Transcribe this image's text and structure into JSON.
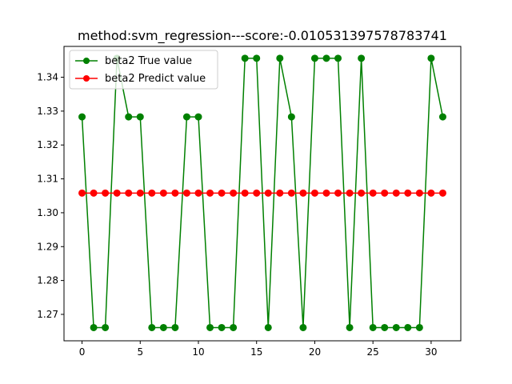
{
  "chart_data": {
    "type": "line",
    "title": "method:svm_regression---score:-0.010531397578783741",
    "xlabel": "",
    "ylabel": "",
    "xlim": [
      -1.55,
      32.55
    ],
    "ylim": [
      1.2622,
      1.3491
    ],
    "x_ticks": [
      0,
      5,
      10,
      15,
      20,
      25,
      30
    ],
    "x_tick_labels": [
      "0",
      "5",
      "10",
      "15",
      "20",
      "25",
      "30"
    ],
    "y_ticks": [
      1.27,
      1.28,
      1.29,
      1.3,
      1.31,
      1.32,
      1.33,
      1.34
    ],
    "y_tick_labels": [
      "1.27",
      "1.28",
      "1.29",
      "1.30",
      "1.31",
      "1.32",
      "1.33",
      "1.34"
    ],
    "grid": false,
    "legend_position": "top-left",
    "x": [
      0,
      1,
      2,
      3,
      4,
      5,
      6,
      7,
      8,
      9,
      10,
      11,
      12,
      13,
      14,
      15,
      16,
      17,
      18,
      19,
      20,
      21,
      22,
      23,
      24,
      25,
      26,
      27,
      28,
      29,
      30,
      31
    ],
    "series": [
      {
        "name": "beta2 True value",
        "color": "#008000",
        "marker": "circle",
        "values": [
          1.3283,
          1.2661,
          1.2661,
          1.3456,
          1.3283,
          1.3283,
          1.2661,
          1.2661,
          1.2661,
          1.3283,
          1.3283,
          1.2661,
          1.2661,
          1.2661,
          1.3456,
          1.3456,
          1.2661,
          1.3456,
          1.3283,
          1.2661,
          1.3456,
          1.3456,
          1.3456,
          1.2661,
          1.3456,
          1.2661,
          1.2661,
          1.2661,
          1.2661,
          1.2661,
          1.3456,
          1.3283
        ]
      },
      {
        "name": "beta2 Predict value",
        "color": "#ff0000",
        "marker": "circle",
        "values": [
          1.3058,
          1.3058,
          1.3058,
          1.3058,
          1.3058,
          1.3058,
          1.3058,
          1.3058,
          1.3058,
          1.3058,
          1.3058,
          1.3058,
          1.3058,
          1.3058,
          1.3058,
          1.3058,
          1.3058,
          1.3058,
          1.3058,
          1.3058,
          1.3058,
          1.3058,
          1.3058,
          1.3058,
          1.3058,
          1.3058,
          1.3058,
          1.3058,
          1.3058,
          1.3058,
          1.3058,
          1.3058
        ]
      }
    ]
  }
}
